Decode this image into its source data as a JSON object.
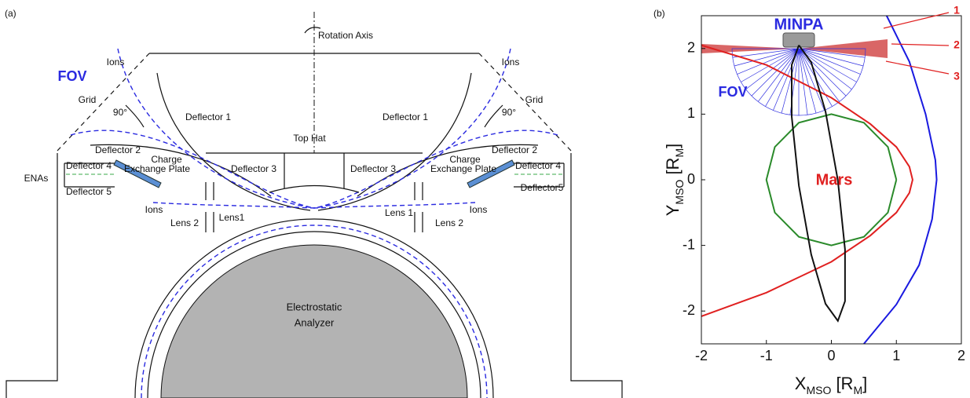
{
  "panel_a": {
    "tag": "(a)",
    "labels": [
      "Rotation Axis",
      "Ions",
      "Ions",
      "FOV",
      "Grid",
      "Grid",
      "90°",
      "90°",
      "Deflector 1",
      "Deflector 1",
      "Top Hat",
      "Deflector 2",
      "Deflector 2",
      "Charge",
      "Exchange Plate",
      "Charge",
      "Exchange Plate",
      "Deflector 3",
      "Deflector 3",
      "Deflector 4",
      "Deflector 4",
      "ENAs",
      "Deflector 5",
      "Deflector5",
      "Ions",
      "Ions",
      "Lens 1",
      "Lens1",
      "Lens 2",
      "Lens 2",
      "Electrostatic",
      "Analyzer"
    ]
  },
  "chart_data": {
    "type": "line",
    "tag": "(b)",
    "xlabel": [
      "X",
      "MSO",
      " [R",
      "M",
      "]"
    ],
    "ylabel": [
      "Y",
      "MSO",
      " [R",
      "M",
      "]"
    ],
    "xlim": [
      -2,
      2
    ],
    "ylim": [
      -2.5,
      2.5
    ],
    "xticks": [
      -2,
      -1,
      0,
      1,
      2
    ],
    "yticks": [
      -2,
      -1,
      0,
      1,
      2
    ],
    "annotations": [
      "MINPA",
      "FOV",
      "Mars",
      "1",
      "2",
      "3"
    ],
    "series": [
      {
        "color": "#2a8a2a",
        "x": [
          1,
          0.87,
          0.5,
          0,
          -0.5,
          -0.87,
          -1,
          -0.87,
          -0.5,
          0,
          0.5,
          0.87,
          1
        ],
        "values": [
          0,
          0.5,
          0.87,
          1,
          0.87,
          0.5,
          0,
          -0.5,
          -0.87,
          -1,
          -0.87,
          -0.5,
          0
        ]
      },
      {
        "color": "#e02020",
        "x": [
          -2,
          -1,
          0,
          0.6,
          1.0,
          1.2,
          1.25,
          1.2,
          1.0,
          0.6,
          0,
          -1,
          -2
        ],
        "values": [
          2.05,
          1.75,
          1.25,
          0.85,
          0.5,
          0.2,
          0,
          -0.2,
          -0.5,
          -0.85,
          -1.25,
          -1.72,
          -2.08
        ]
      },
      {
        "color": "#1a1ae0",
        "x": [
          0.85,
          1.2,
          1.45,
          1.6,
          1.62,
          1.55,
          1.35,
          1.0,
          0.5
        ],
        "values": [
          2.5,
          1.8,
          1.0,
          0.3,
          0,
          -0.6,
          -1.3,
          -1.9,
          -2.5
        ]
      },
      {
        "color": "#111111",
        "x": [
          -0.5,
          -0.31,
          -0.09,
          0.1,
          0.21,
          0.21,
          0.1,
          -0.09,
          -0.31,
          -0.5,
          -0.61,
          -0.61,
          -0.5
        ],
        "values": [
          2.05,
          1.79,
          1.04,
          -0.01,
          -1.06,
          -1.85,
          -2.15,
          -1.89,
          -1.14,
          -0.09,
          0.96,
          1.75,
          2.05
        ]
      }
    ]
  }
}
